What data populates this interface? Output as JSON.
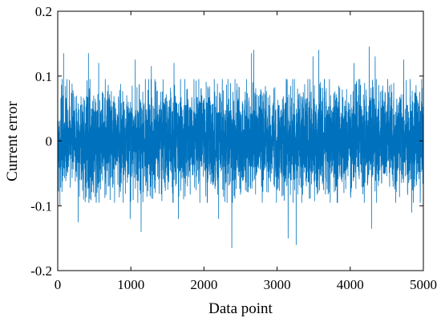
{
  "chart_data": {
    "type": "line",
    "xlabel": "Data point",
    "ylabel": "Current error",
    "xlim": [
      0,
      5000
    ],
    "ylim": [
      -0.2,
      0.2
    ],
    "xticks": [
      0,
      1000,
      2000,
      3000,
      4000,
      5000
    ],
    "yticks": [
      -0.2,
      -0.1,
      0,
      0.1,
      0.2
    ],
    "xtick_labels": [
      "0",
      "1000",
      "2000",
      "3000",
      "4000",
      "5000"
    ],
    "ytick_labels": [
      "-0.2",
      "-0.1",
      "0",
      "0.1",
      "0.2"
    ],
    "grid": false,
    "line_color": "#0072BD",
    "series": [
      {
        "n_points": 5000,
        "x": [
          0,
          30,
          80,
          280,
          420,
          560,
          990,
          1060,
          1140,
          1280,
          1590,
          1650,
          2200,
          2380,
          2650,
          2680,
          3150,
          3260,
          3490,
          3570,
          4050,
          4260,
          4290,
          4340,
          4730,
          4840,
          4950
        ],
        "values": [
          0.055,
          -0.1,
          0.135,
          -0.125,
          0.135,
          0.12,
          -0.12,
          0.125,
          -0.14,
          0.115,
          0.12,
          -0.12,
          -0.12,
          -0.165,
          0.135,
          0.14,
          -0.15,
          -0.16,
          0.13,
          0.14,
          0.12,
          0.145,
          -0.135,
          0.13,
          0.125,
          -0.11,
          0.075
        ]
      }
    ]
  }
}
